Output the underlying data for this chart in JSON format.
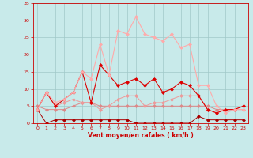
{
  "xlabel": "Vent moyen/en rafales ( km/h )",
  "xlim": [
    -0.5,
    23.5
  ],
  "ylim": [
    0,
    35
  ],
  "xticks": [
    0,
    1,
    2,
    3,
    4,
    5,
    6,
    7,
    8,
    9,
    10,
    11,
    12,
    13,
    14,
    15,
    16,
    17,
    18,
    19,
    20,
    21,
    22,
    23
  ],
  "yticks": [
    0,
    5,
    10,
    15,
    20,
    25,
    30,
    35
  ],
  "background_color": "#c8eaea",
  "grid_color": "#a0c8c8",
  "lines": [
    {
      "x": [
        0,
        1,
        2,
        3,
        4,
        5,
        6,
        7,
        8,
        9,
        10,
        11,
        12,
        13,
        14,
        15,
        16,
        17,
        18,
        19,
        20,
        21,
        22,
        23
      ],
      "y": [
        4,
        0,
        1,
        1,
        1,
        1,
        1,
        1,
        1,
        1,
        1,
        0,
        0,
        0,
        0,
        0,
        0,
        0,
        2,
        1,
        1,
        1,
        1,
        1
      ],
      "color": "#aa0000",
      "lw": 0.7
    },
    {
      "x": [
        0,
        1,
        2,
        3,
        4,
        5,
        6,
        7,
        8,
        9,
        10,
        11,
        12,
        13,
        14,
        15,
        16,
        17,
        18,
        19,
        20,
        21,
        22,
        23
      ],
      "y": [
        5,
        4,
        4,
        4,
        5,
        6,
        6,
        5,
        5,
        5,
        5,
        5,
        5,
        5,
        5,
        5,
        5,
        5,
        5,
        5,
        4,
        4,
        4,
        4
      ],
      "color": "#dd8888",
      "lw": 0.7
    },
    {
      "x": [
        0,
        1,
        2,
        3,
        4,
        5,
        6,
        7,
        8,
        9,
        10,
        11,
        12,
        13,
        14,
        15,
        16,
        17,
        18,
        19,
        20,
        21,
        22,
        23
      ],
      "y": [
        4,
        9,
        5,
        6,
        7,
        6,
        6,
        4,
        5,
        7,
        8,
        8,
        5,
        6,
        6,
        7,
        8,
        8,
        8,
        4,
        3,
        4,
        4,
        5
      ],
      "color": "#ee9999",
      "lw": 0.7
    },
    {
      "x": [
        0,
        1,
        2,
        3,
        4,
        5,
        6,
        7,
        8,
        9,
        10,
        11,
        12,
        13,
        14,
        15,
        16,
        17,
        18,
        19,
        20,
        21,
        22,
        23
      ],
      "y": [
        4,
        9,
        5,
        7,
        9,
        15,
        6,
        17,
        14,
        11,
        12,
        13,
        11,
        13,
        9,
        10,
        12,
        11,
        8,
        4,
        3,
        4,
        4,
        5
      ],
      "color": "#dd0000",
      "lw": 0.8
    },
    {
      "x": [
        0,
        1,
        2,
        3,
        4,
        5,
        6,
        7,
        8,
        9,
        10,
        11,
        12,
        13,
        14,
        15,
        16,
        17,
        18,
        19,
        20,
        21,
        22,
        23
      ],
      "y": [
        4,
        9,
        6,
        7,
        9,
        15,
        13,
        23,
        14,
        27,
        26,
        31,
        26,
        25,
        24,
        26,
        22,
        23,
        11,
        11,
        5,
        3,
        4,
        4
      ],
      "color": "#ffaaaa",
      "lw": 0.8
    }
  ],
  "xlabel_color": "#cc0000",
  "tick_color": "#cc0000",
  "markersize": 2.5,
  "marker": "D"
}
